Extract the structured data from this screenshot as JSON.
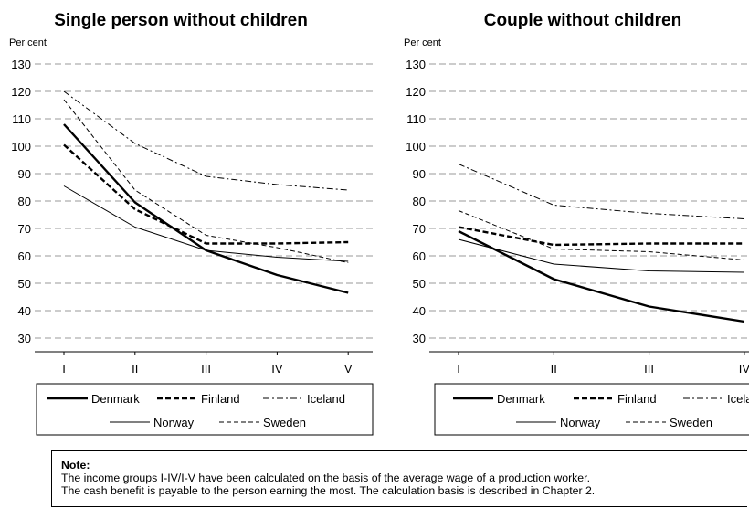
{
  "chart_data": [
    {
      "type": "line",
      "title": "Single person without children",
      "ylabel": "Per cent",
      "xlabel": "",
      "categories": [
        "I",
        "II",
        "III",
        "IV",
        "V"
      ],
      "ylim": [
        30,
        130
      ],
      "yticks": [
        30,
        40,
        50,
        60,
        70,
        80,
        90,
        100,
        110,
        120,
        130
      ],
      "grid": "horizontal dashed",
      "legend_position": "bottom",
      "series": [
        {
          "name": "Denmark",
          "style": "solid-thick",
          "values": [
            108,
            79.5,
            62,
            53,
            46.5
          ]
        },
        {
          "name": "Finland",
          "style": "dashed-thick",
          "values": [
            100.5,
            77,
            64.5,
            64.5,
            65
          ]
        },
        {
          "name": "Iceland",
          "style": "dashdot-thin",
          "values": [
            120,
            101,
            89,
            86,
            84
          ]
        },
        {
          "name": "Norway",
          "style": "solid-thin",
          "values": [
            85.5,
            70.5,
            62,
            59.5,
            58
          ]
        },
        {
          "name": "Sweden",
          "style": "dashed-thin",
          "values": [
            117,
            84,
            67.5,
            63,
            57.5
          ]
        }
      ]
    },
    {
      "type": "line",
      "title": "Couple without children",
      "ylabel": "Per cent",
      "xlabel": "",
      "categories": [
        "I",
        "II",
        "III",
        "IV"
      ],
      "ylim": [
        30,
        130
      ],
      "yticks": [
        30,
        40,
        50,
        60,
        70,
        80,
        90,
        100,
        110,
        120,
        130
      ],
      "grid": "horizontal dashed",
      "legend_position": "bottom",
      "series": [
        {
          "name": "Denmark",
          "style": "solid-thick",
          "values": [
            69,
            51.5,
            41.5,
            36
          ]
        },
        {
          "name": "Finland",
          "style": "dashed-thick",
          "values": [
            70.5,
            64,
            64.5,
            64.5
          ]
        },
        {
          "name": "Iceland",
          "style": "dashdot-thin",
          "values": [
            93.5,
            78.5,
            75.5,
            73.5
          ]
        },
        {
          "name": "Norway",
          "style": "solid-thin",
          "values": [
            66,
            57,
            54.5,
            54
          ]
        },
        {
          "name": "Sweden",
          "style": "dashed-thin",
          "values": [
            76.5,
            62.5,
            61.5,
            58.5
          ]
        }
      ]
    }
  ],
  "note": {
    "title": "Note:",
    "line1": "The income groups I-IV/I-V have been calculated on the basis of the average wage of a production worker.",
    "line2": "The cash benefit is payable to the person earning the most. The calculation basis is described in Chapter 2."
  }
}
